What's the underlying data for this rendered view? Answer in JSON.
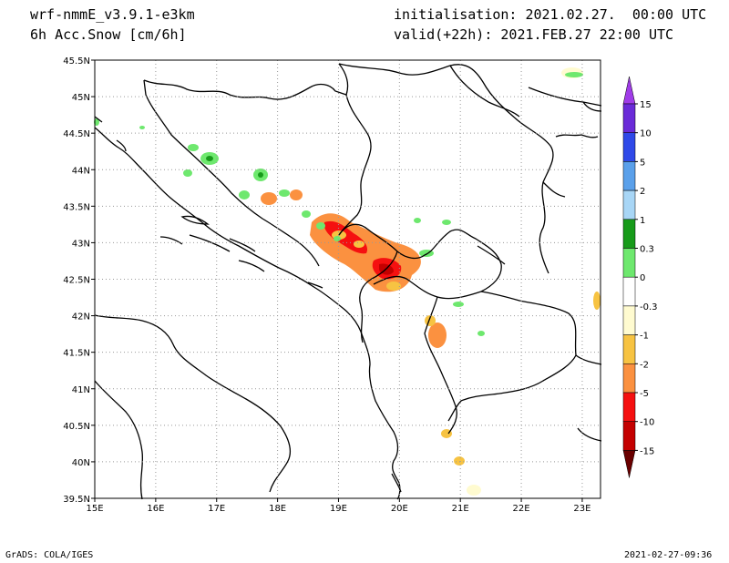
{
  "header": {
    "model": "wrf-nmmE_v3.9.1-e3km",
    "field": "6h Acc.Snow [cm/6h]",
    "init": "initialisation: 2021.02.27.  00:00 UTC",
    "valid": "valid(+22h): 2021.FEB.27 22:00 UTC"
  },
  "footer": {
    "left": "GrADS: COLA/IGES",
    "right": "2021-02-27-09:36"
  },
  "map": {
    "lon_range": [
      15,
      23.3
    ],
    "lat_range": [
      39.5,
      45.5
    ],
    "lon_ticks": [
      "15E",
      "16E",
      "17E",
      "18E",
      "19E",
      "20E",
      "21E",
      "22E",
      "23E"
    ],
    "lat_ticks": [
      "45.5N",
      "45N",
      "44.5N",
      "44N",
      "43.5N",
      "43N",
      "42.5N",
      "42N",
      "41.5N",
      "41N",
      "40.5N",
      "40N",
      "39.5N"
    ],
    "grid": true
  },
  "colorbar": {
    "labels": [
      "15",
      "10",
      "5",
      "2",
      "1",
      "0.3",
      "0",
      "-0.3",
      "-1",
      "-2",
      "-5",
      "-10",
      "-15"
    ],
    "colors": [
      "#6a2bd8",
      "#2f49e8",
      "#5aa0ea",
      "#a8d6f6",
      "#179b1a",
      "#6ee86e",
      "#ffffff",
      "#fffbd0",
      "#f7c342",
      "#fb9140",
      "#f51010",
      "#c40000",
      "#7a0000"
    ],
    "top_cap": "#a03ce8",
    "bottom_cap": "#6a0000"
  }
}
